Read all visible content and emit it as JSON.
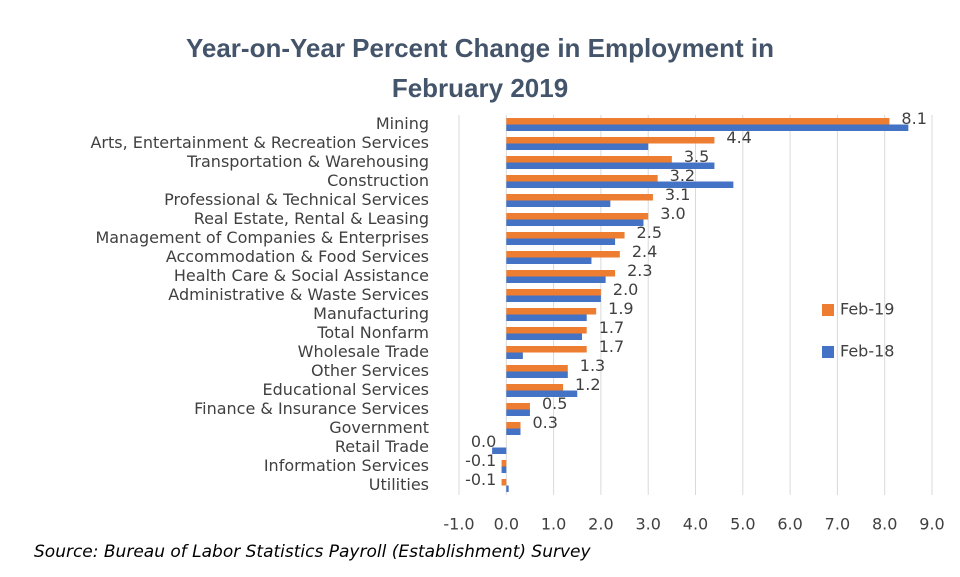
{
  "chart_data": {
    "type": "hbar",
    "title": "Year-on-Year Percent Change in Employment in February 2019",
    "source": "Source: Bureau of Labor Statistics Payroll (Establishment) Survey",
    "categories": [
      "Mining",
      "Arts, Entertainment & Recreation Services",
      "Transportation & Warehousing",
      "Construction",
      "Professional & Technical Services",
      "Real Estate, Rental & Leasing",
      "Management of Companies & Enterprises",
      "Accommodation & Food Services",
      "Health Care & Social Assistance",
      "Administrative & Waste Services",
      "Manufacturing",
      "Total Nonfarm",
      "Wholesale Trade",
      "Other Services",
      "Educational Services",
      "Finance & Insurance Services",
      "Government",
      "Retail Trade",
      "Information Services",
      "Utilities"
    ],
    "series": [
      {
        "name": "Feb-19",
        "color": "#ed7d31",
        "values": [
          8.1,
          4.4,
          3.5,
          3.2,
          3.1,
          3.0,
          2.5,
          2.4,
          2.3,
          2.0,
          1.9,
          1.7,
          1.7,
          1.3,
          1.2,
          0.5,
          0.3,
          0.0,
          -0.1,
          -0.1
        ],
        "value_labels": [
          "8.1",
          "4.4",
          "3.5",
          "3.2",
          "3.1",
          "3.0",
          "2.5",
          "2.4",
          "2.3",
          "2.0",
          "1.9",
          "1.7",
          "1.7",
          "1.3",
          "1.2",
          "0.5",
          "0.3",
          "0.0",
          "-0.1",
          "-0.1"
        ]
      },
      {
        "name": "Feb-18",
        "color": "#4472c4",
        "values": [
          8.5,
          3.0,
          4.4,
          4.8,
          2.2,
          2.9,
          2.3,
          1.8,
          2.1,
          2.0,
          1.7,
          1.6,
          0.35,
          1.3,
          1.5,
          0.5,
          0.3,
          -0.3,
          -0.1,
          0.05
        ]
      }
    ],
    "xlim": [
      -1.0,
      9.0
    ],
    "xticks": [
      {
        "value": -1,
        "label": "-1.0"
      },
      {
        "value": 0,
        "label": "0.0"
      },
      {
        "value": 1,
        "label": "1.0"
      },
      {
        "value": 2,
        "label": "2.0"
      },
      {
        "value": 3,
        "label": "3.0"
      },
      {
        "value": 4,
        "label": "4.0"
      },
      {
        "value": 5,
        "label": "5.0"
      },
      {
        "value": 6,
        "label": "6.0"
      },
      {
        "value": 7,
        "label": "7.0"
      },
      {
        "value": 8,
        "label": "8.0"
      },
      {
        "value": 9,
        "label": "9.0"
      }
    ],
    "grid": true,
    "legend": "right"
  }
}
